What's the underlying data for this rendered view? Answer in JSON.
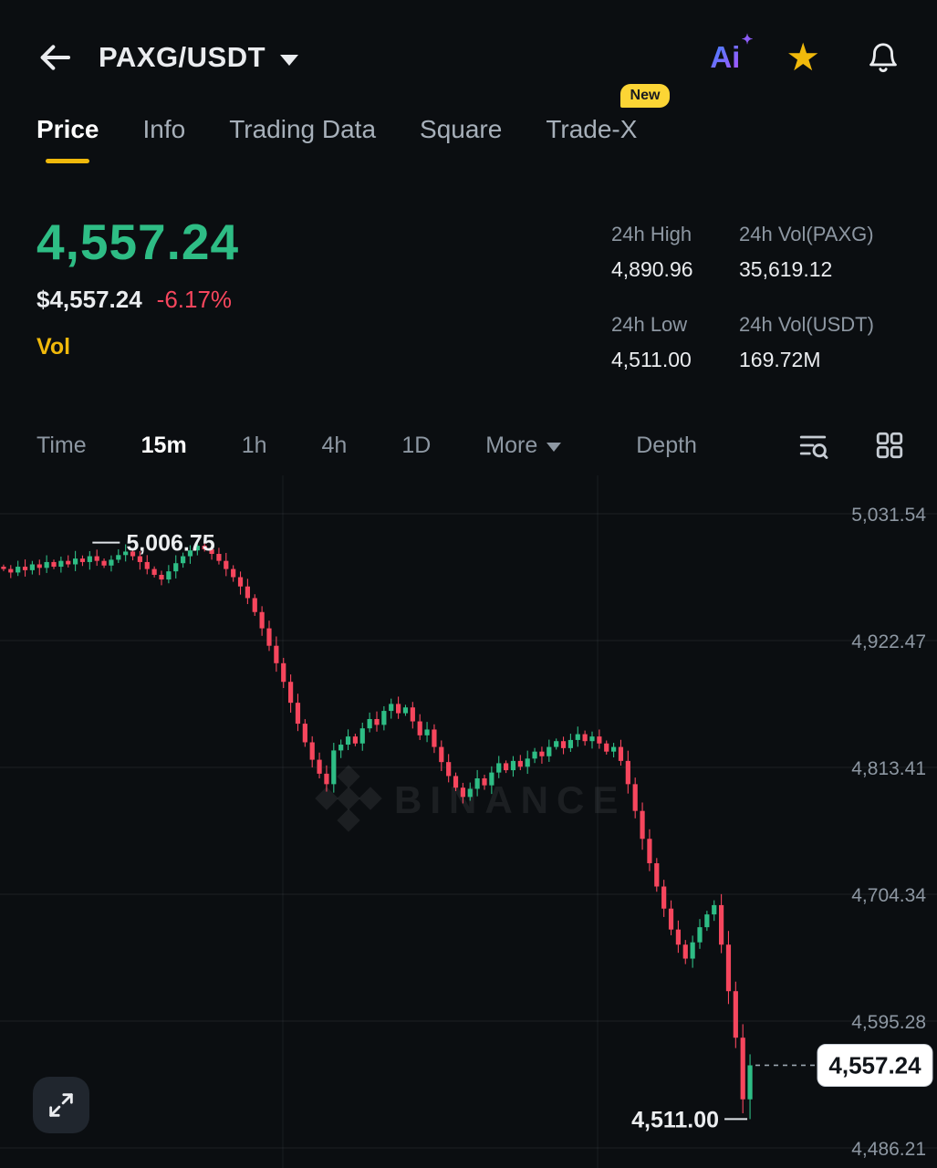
{
  "header": {
    "title": "PAXG/USDT",
    "ai_label": "Ai",
    "star_glyph": "★",
    "sparkle_glyph": "✦"
  },
  "tabs": {
    "items": [
      {
        "label": "Price",
        "active": true
      },
      {
        "label": "Info"
      },
      {
        "label": "Trading Data"
      },
      {
        "label": "Square"
      },
      {
        "label": "Trade-X",
        "badge": "New"
      }
    ]
  },
  "price_panel": {
    "last_price": "4,557.24",
    "fiat_price": "$4,557.24",
    "change_pct": "-6.17%",
    "vol_label": "Vol"
  },
  "stats": {
    "items": [
      {
        "label": "24h High",
        "value": "4,890.96"
      },
      {
        "label": "24h Vol(PAXG)",
        "value": "35,619.12"
      },
      {
        "label": "24h Low",
        "value": "4,511.00"
      },
      {
        "label": "24h Vol(USDT)",
        "value": "169.72M"
      }
    ]
  },
  "timeframes": {
    "items": [
      {
        "label": "Time"
      },
      {
        "label": "15m",
        "active": true
      },
      {
        "label": "1h"
      },
      {
        "label": "4h"
      },
      {
        "label": "1D"
      },
      {
        "label": "More",
        "caret": true
      },
      {
        "label": "Depth"
      }
    ]
  },
  "chart_data": {
    "type": "candlestick",
    "symbol": "PAXG/USDT",
    "interval": "15m",
    "watermark": "BINANCE",
    "up_color": "#2ebd85",
    "down_color": "#f6465d",
    "y_ticks": [
      "5,031.54",
      "4,922.47",
      "4,813.41",
      "4,704.34",
      "4,595.28",
      "4,486.21"
    ],
    "y_tick_values": [
      5031.54,
      4922.47,
      4813.41,
      4704.34,
      4595.28,
      4486.21
    ],
    "high_annotation": {
      "label": "5,006.75",
      "value": 5006.75,
      "index": 27
    },
    "low_annotation": {
      "label": "4,511.00",
      "value": 4511.0,
      "index": 104
    },
    "last_price": {
      "label": "4,557.24",
      "value": 4557.24
    },
    "open_first": 4986,
    "closes": [
      4984,
      4981,
      4986,
      4983,
      4988,
      4985,
      4990,
      4986,
      4991,
      4988,
      4993,
      4990,
      4995,
      4991,
      4987,
      4992,
      4996,
      4999,
      4995,
      4990,
      4984,
      4979,
      4975,
      4982,
      4989,
      4995,
      5000,
      5004,
      5001,
      4997,
      4991,
      4984,
      4977,
      4969,
      4959,
      4947,
      4933,
      4918,
      4903,
      4887,
      4869,
      4851,
      4835,
      4820,
      4808,
      4799,
      4828,
      4833,
      4840,
      4834,
      4847,
      4855,
      4850,
      4862,
      4868,
      4860,
      4865,
      4853,
      4841,
      4846,
      4831,
      4818,
      4806,
      4796,
      4788,
      4795,
      4804,
      4798,
      4809,
      4817,
      4811,
      4819,
      4814,
      4821,
      4827,
      4823,
      4831,
      4836,
      4830,
      4837,
      4842,
      4836,
      4840,
      4834,
      4827,
      4831,
      4819,
      4799,
      4776,
      4752,
      4731,
      4711,
      4692,
      4674,
      4661,
      4649,
      4663,
      4676,
      4687,
      4695,
      4661,
      4621,
      4581,
      4528,
      4557.24
    ],
    "wick_overrides": {
      "27": {
        "high": 5006.75
      },
      "103": {
        "low": 4516
      },
      "104": {
        "low": 4511.0
      }
    },
    "grid_vlines_x": [
      310,
      655
    ]
  }
}
